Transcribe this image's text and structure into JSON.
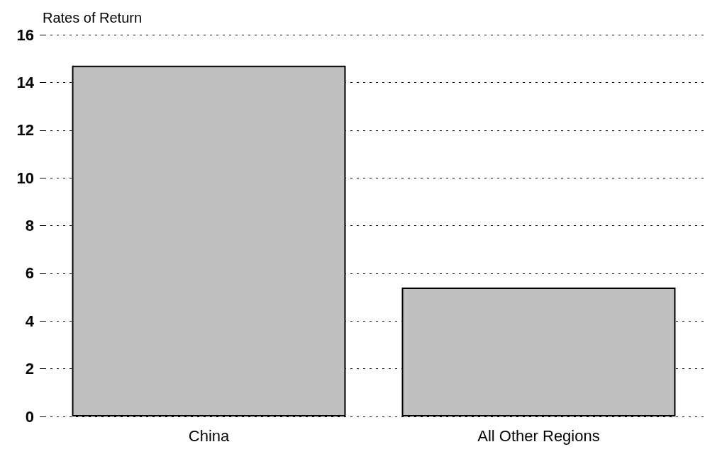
{
  "chart_data": {
    "type": "bar",
    "ylabel": "Rates of Return",
    "categories": [
      "China",
      "All Other Regions"
    ],
    "values": [
      14.7,
      5.4
    ],
    "color": "#c0c0c0",
    "ylim": [
      0,
      16
    ],
    "yticks": [
      0,
      2,
      4,
      6,
      8,
      10,
      12,
      14,
      16
    ],
    "grid": "y"
  }
}
